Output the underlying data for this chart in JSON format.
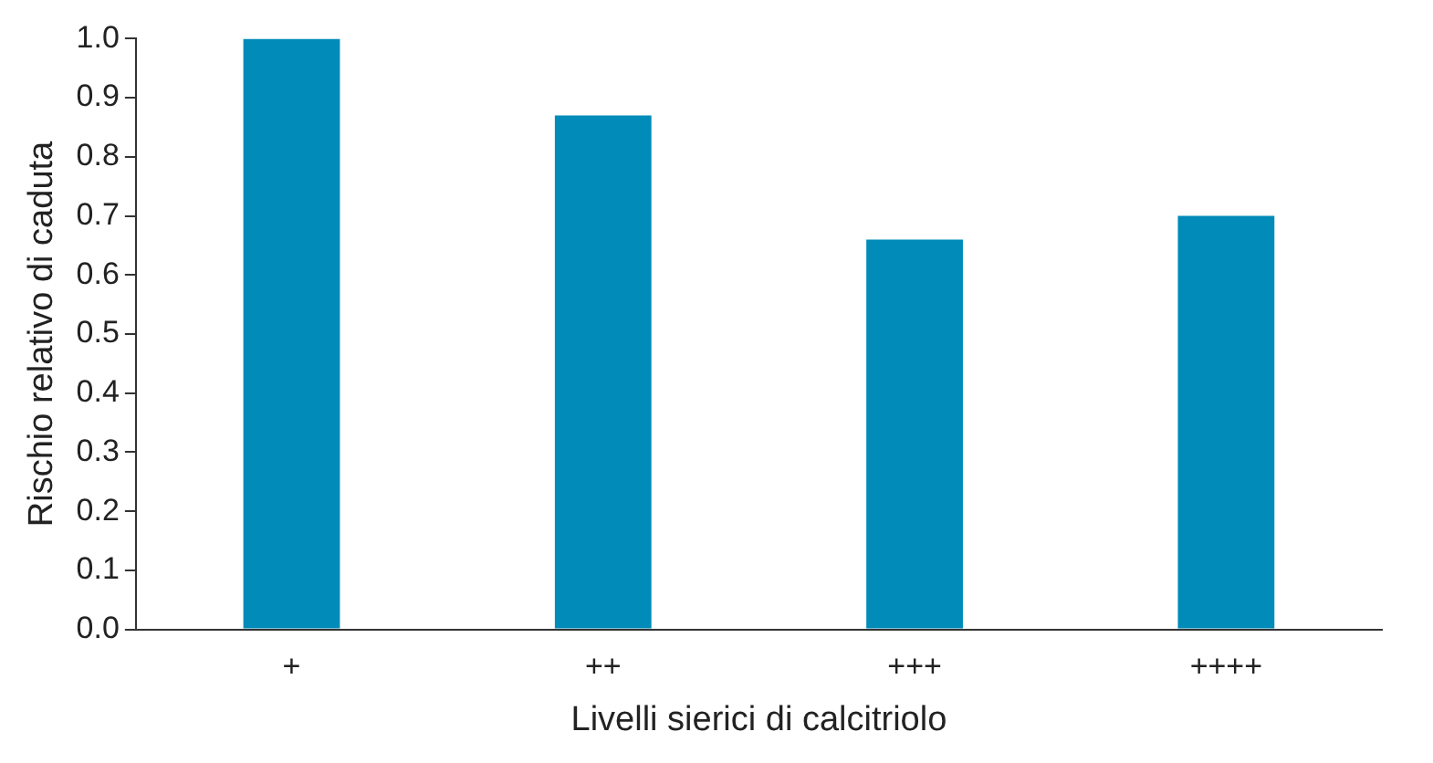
{
  "chart_data": {
    "type": "bar",
    "xlabel": "Livelli sierici di calcitriolo",
    "ylabel": "Rischio relativo di caduta",
    "categories": [
      "+",
      "++",
      "+++",
      "++++"
    ],
    "series": [
      {
        "color": "#008bb8",
        "values": [
          1.0,
          0.87,
          0.66,
          0.7
        ]
      }
    ],
    "ylim": [
      0,
      1.0
    ],
    "yticks": [
      {
        "value": 0,
        "label": "0.0"
      },
      {
        "value": 0.1,
        "label": "0.1"
      },
      {
        "value": 0.2,
        "label": "0.2"
      },
      {
        "value": 0.3,
        "label": "0.3"
      },
      {
        "value": 0.4,
        "label": "0.4"
      },
      {
        "value": 0.5,
        "label": "0.5"
      },
      {
        "value": 0.6,
        "label": "0.6"
      },
      {
        "value": 0.7,
        "label": "0.7"
      },
      {
        "value": 0.8,
        "label": "0.8"
      },
      {
        "value": 0.9,
        "label": "0.9"
      },
      {
        "value": 1.0,
        "label": "1.0"
      }
    ],
    "grid": false,
    "legend": false
  }
}
